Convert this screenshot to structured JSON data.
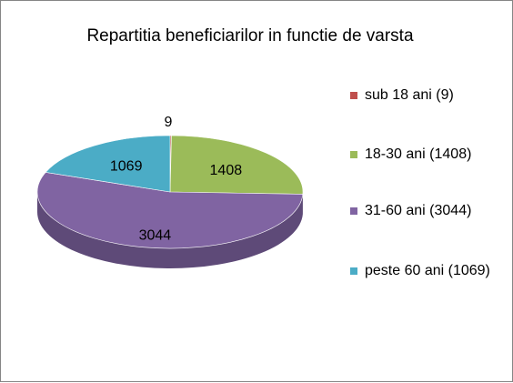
{
  "chart_data": {
    "type": "pie",
    "title": "Repartitia beneficiarilor in functie de varsta",
    "slices": [
      {
        "label": "sub 18 ani (9)",
        "value": 9,
        "data_label": "9",
        "color": "#c0504d",
        "side": "#8e3b39"
      },
      {
        "label": "18-30 ani (1408)",
        "value": 1408,
        "data_label": "1408",
        "color": "#9bbb59",
        "side": "#73893f"
      },
      {
        "label": "31-60 ani (3044)",
        "value": 3044,
        "data_label": "3044",
        "color": "#8064a2",
        "side": "#5e4a78"
      },
      {
        "label": "peste 60 ani (1069)",
        "value": 1069,
        "data_label": "1069",
        "color": "#4bacc6",
        "side": "#357f93"
      }
    ],
    "legend_position": "right"
  }
}
